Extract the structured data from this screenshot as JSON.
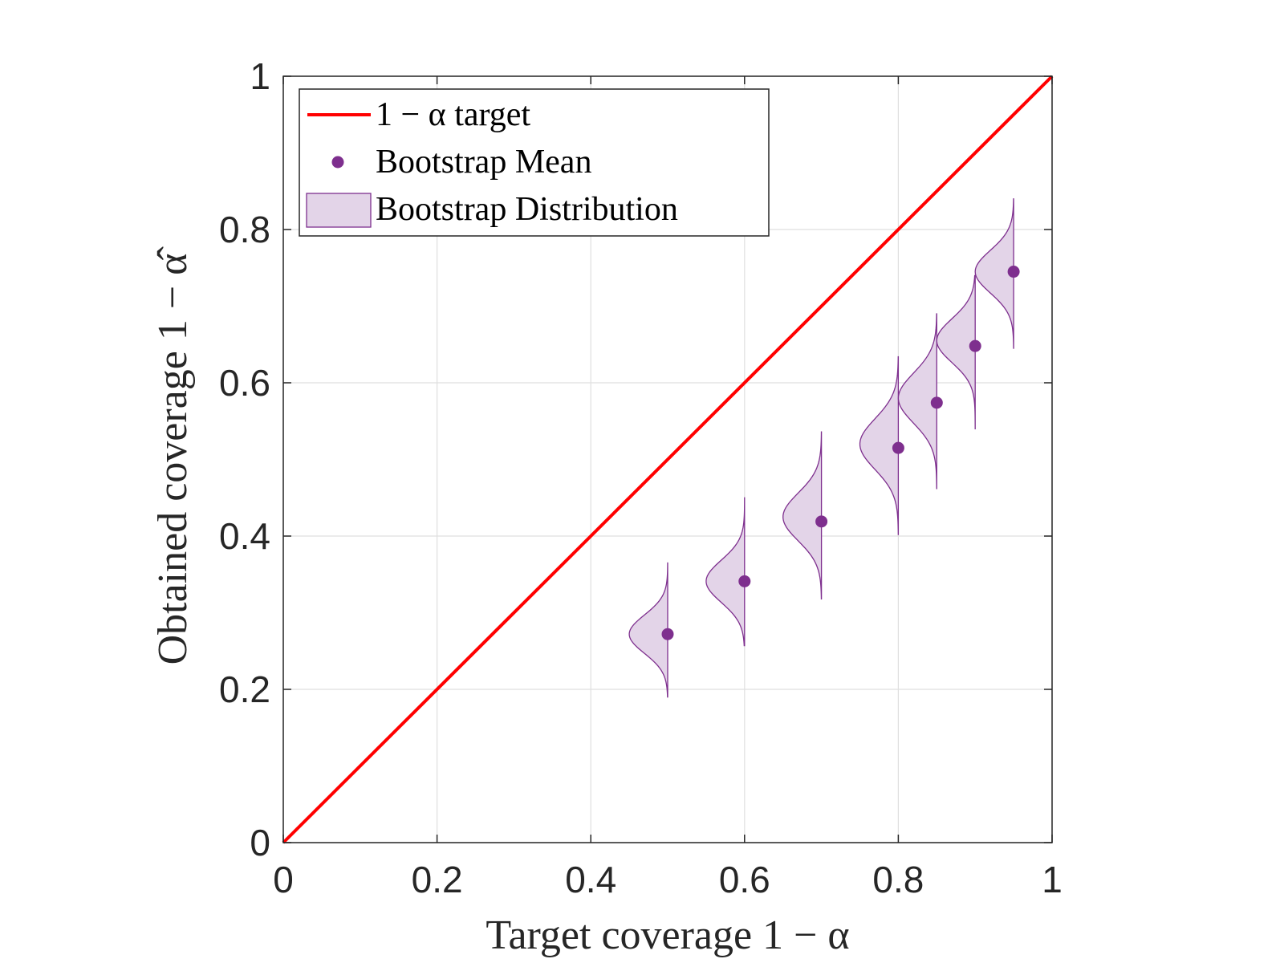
{
  "chart_data": {
    "type": "scatter",
    "title": "",
    "xlabel": "Target coverage 1 − α",
    "ylabel": "Obtained coverage 1 − α̂",
    "xlim": [
      0,
      1
    ],
    "ylim": [
      0,
      1
    ],
    "grid": true,
    "x_ticks": [
      "0",
      "0.2",
      "0.4",
      "0.6",
      "0.8",
      "1"
    ],
    "y_ticks": [
      "0",
      "0.2",
      "0.4",
      "0.6",
      "0.8",
      "1"
    ],
    "legend": {
      "placement": "top-left",
      "entries": [
        "1 − α target",
        "Bootstrap Mean",
        "Bootstrap Distribution"
      ]
    },
    "colors": {
      "target_line": "#ff0000",
      "mean_marker": "#7e2f8e",
      "distribution_fill": "#e3d4e8",
      "distribution_edge": "#7e2f8e"
    },
    "target_line": {
      "x": [
        0,
        1
      ],
      "y": [
        0,
        1
      ]
    },
    "series": [
      {
        "name": "Bootstrap Mean",
        "x": [
          0.5,
          0.6,
          0.7,
          0.8,
          0.85,
          0.9,
          0.95
        ],
        "y": [
          0.272,
          0.341,
          0.419,
          0.515,
          0.574,
          0.648,
          0.745
        ]
      }
    ],
    "distributions": [
      {
        "x": 0.5,
        "min": 0.19,
        "max": 0.365,
        "mode": 0.272,
        "peak_width": 0.05
      },
      {
        "x": 0.6,
        "min": 0.257,
        "max": 0.45,
        "mode": 0.341,
        "peak_width": 0.05
      },
      {
        "x": 0.7,
        "min": 0.318,
        "max": 0.536,
        "mode": 0.425,
        "peak_width": 0.05
      },
      {
        "x": 0.8,
        "min": 0.402,
        "max": 0.634,
        "mode": 0.52,
        "peak_width": 0.05
      },
      {
        "x": 0.85,
        "min": 0.462,
        "max": 0.69,
        "mode": 0.58,
        "peak_width": 0.05
      },
      {
        "x": 0.9,
        "min": 0.54,
        "max": 0.74,
        "mode": 0.655,
        "peak_width": 0.05
      },
      {
        "x": 0.95,
        "min": 0.645,
        "max": 0.84,
        "mode": 0.745,
        "peak_width": 0.05
      }
    ]
  }
}
